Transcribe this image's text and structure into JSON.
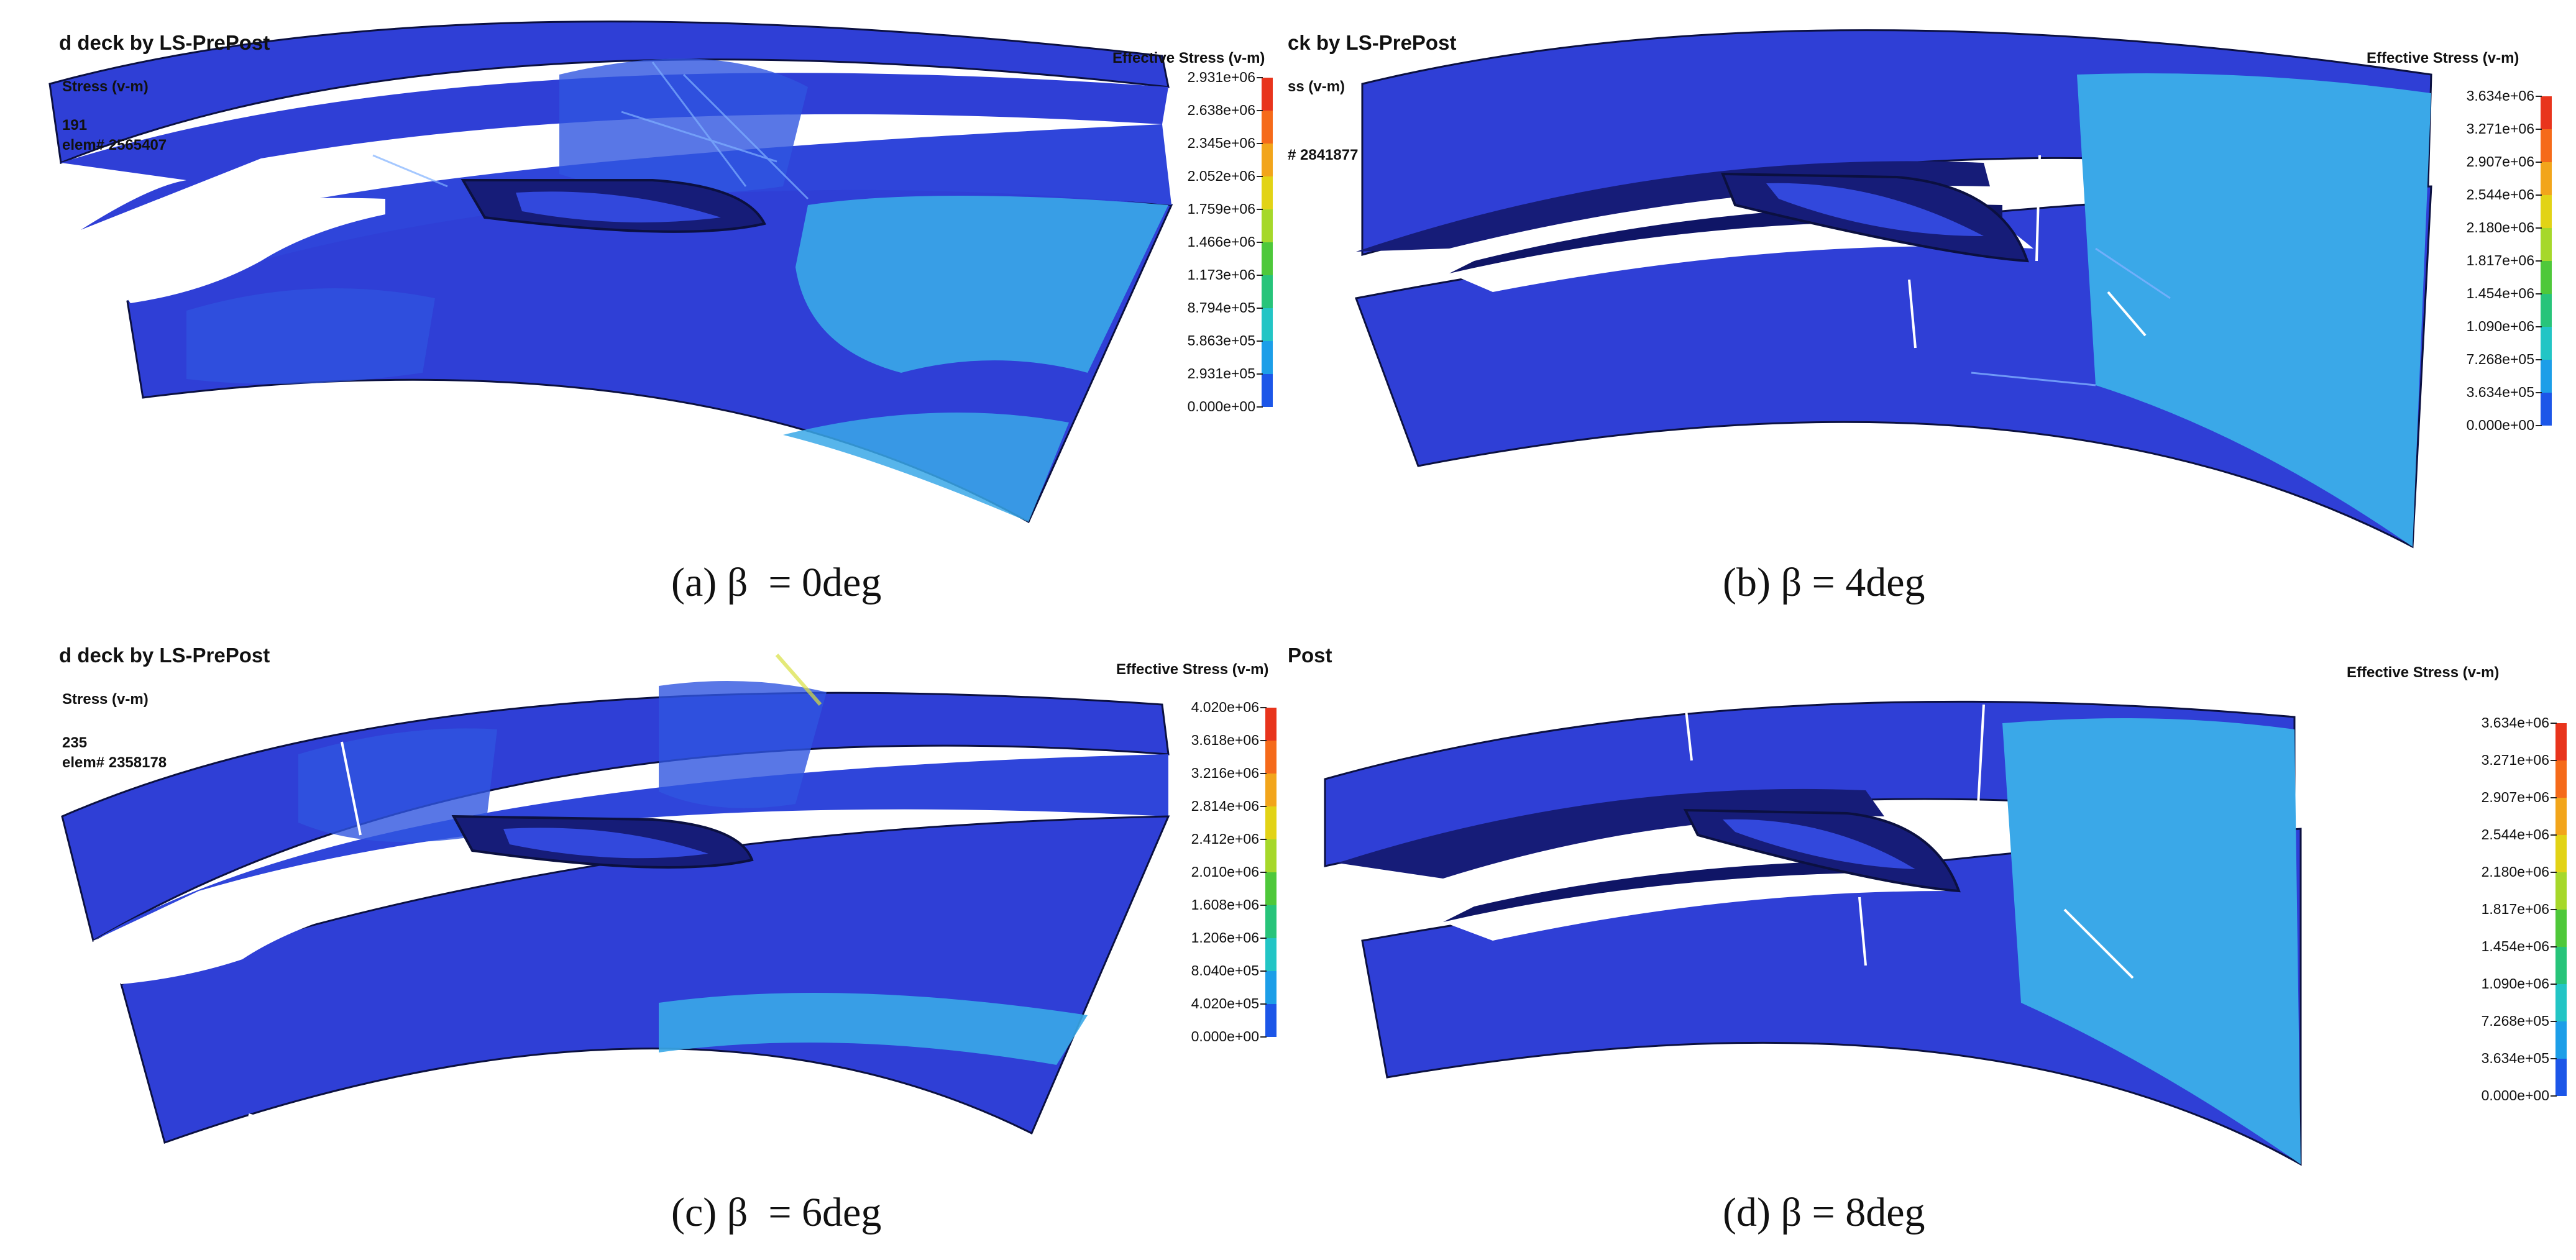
{
  "panels": [
    {
      "id": "a",
      "title": "d deck by LS-PrePost",
      "info_lines": [
        "Stress (v-m)",
        "191",
        "elem# 2565407"
      ],
      "legend_title": "Effective Stress (v-m)",
      "legend_values": [
        "2.931e+06",
        "2.638e+06",
        "2.345e+06",
        "2.052e+06",
        "1.759e+06",
        "1.466e+06",
        "1.173e+06",
        "8.794e+05",
        "5.863e+05",
        "2.931e+05",
        "0.000e+00"
      ],
      "caption": "(a) β  = 0deg"
    },
    {
      "id": "b",
      "title": "ck by LS-PrePost",
      "info_lines": [
        "ss (v-m)",
        "",
        "# 2841877"
      ],
      "legend_title": "Effective Stress (v-m)",
      "legend_values": [
        "3.634e+06",
        "3.271e+06",
        "2.907e+06",
        "2.544e+06",
        "2.180e+06",
        "1.817e+06",
        "1.454e+06",
        "1.090e+06",
        "7.268e+05",
        "3.634e+05",
        "0.000e+00"
      ],
      "caption": "(b) β = 4deg"
    },
    {
      "id": "c",
      "title": "d deck by LS-PrePost",
      "info_lines": [
        "Stress (v-m)",
        "235",
        "elem# 2358178"
      ],
      "legend_title": "Effective Stress (v-m)",
      "legend_values": [
        "4.020e+06",
        "3.618e+06",
        "3.216e+06",
        "2.814e+06",
        "2.412e+06",
        "2.010e+06",
        "1.608e+06",
        "1.206e+06",
        "8.040e+05",
        "4.020e+05",
        "0.000e+00"
      ],
      "caption": "(c) β  = 6deg"
    },
    {
      "id": "d",
      "title": "Post",
      "info_lines": [
        "",
        "",
        ""
      ],
      "legend_title": "Effective Stress (v-m)",
      "legend_values": [
        "3.634e+06",
        "3.271e+06",
        "2.907e+06",
        "2.544e+06",
        "2.180e+06",
        "1.817e+06",
        "1.454e+06",
        "1.090e+06",
        "7.268e+05",
        "3.634e+05",
        "0.000e+00"
      ],
      "caption": "(d) β = 8deg"
    }
  ],
  "colors": {
    "legend_scale": [
      "#e8341c",
      "#f56a1a",
      "#f2a51b",
      "#e2d316",
      "#a6d82a",
      "#4ec83a",
      "#27c47a",
      "#22c5c5",
      "#1c9ee8",
      "#1c56e8",
      "#2a22d8"
    ],
    "deck_base": "#2f3fd6",
    "deck_light": "#2f7fe6",
    "deck_cyan": "#3aa8e8",
    "cut_dark": "#161c78",
    "outline": "#0b1040"
  }
}
